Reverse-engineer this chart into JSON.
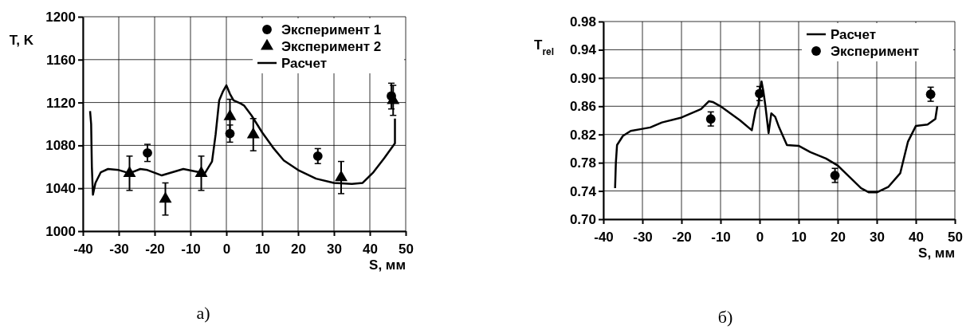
{
  "chart_data": [
    {
      "type": "line",
      "xlabel": "S, мм",
      "ylabel": "T, K",
      "annotations": [
        "а)"
      ],
      "xlim": [
        -40,
        50
      ],
      "xticks": [
        -40,
        -30,
        -20,
        -10,
        0,
        10,
        20,
        30,
        40,
        50
      ],
      "ylim": [
        1000,
        1200
      ],
      "yticks": [
        1000,
        1040,
        1080,
        1120,
        1160,
        1200
      ],
      "grid": true,
      "legend": "top right",
      "series": [
        {
          "name": "Эксперимент 1",
          "type": "scatter",
          "marker": "circle",
          "color": "#000000",
          "x": [
            -22,
            1,
            25.5,
            46
          ],
          "values": [
            1073,
            1091,
            1070,
            1126
          ],
          "errors": [
            8,
            8,
            7,
            12
          ]
        },
        {
          "name": "Эксперимент 2",
          "type": "scatter",
          "marker": "triangle",
          "color": "#000000",
          "x": [
            -27,
            -17,
            -7,
            1,
            7.5,
            32,
            46.5
          ],
          "values": [
            1054,
            1030,
            1054,
            1107,
            1090,
            1050,
            1122
          ],
          "errors": [
            16,
            15,
            16,
            16,
            15,
            15,
            14
          ]
        },
        {
          "name": "Расчет",
          "type": "line",
          "color": "#000000",
          "x": [
            -38,
            -37.7,
            -37.5,
            -37.2,
            -36.5,
            -35,
            -33,
            -30,
            -27,
            -24,
            -22,
            -18,
            -15,
            -12,
            -9,
            -6,
            -4,
            -3,
            -2,
            -1,
            0,
            1,
            2,
            4,
            5,
            7,
            10,
            13,
            16,
            20,
            25,
            30,
            35,
            38,
            41,
            44,
            47,
            47
          ],
          "values": [
            1112,
            1100,
            1060,
            1034,
            1045,
            1055,
            1058,
            1057,
            1054,
            1058,
            1057,
            1052,
            1055,
            1058,
            1056,
            1054,
            1065,
            1090,
            1122,
            1130,
            1136,
            1128,
            1122,
            1119,
            1117,
            1108,
            1092,
            1078,
            1066,
            1057,
            1049,
            1045,
            1044,
            1045,
            1055,
            1068,
            1082,
            1105
          ]
        }
      ]
    },
    {
      "type": "line",
      "xlabel": "S, мм",
      "ylabel": "T$_{rel}$",
      "annotations": [
        "б)"
      ],
      "xlim": [
        -40,
        50
      ],
      "xticks": [
        -40,
        -30,
        -20,
        -10,
        0,
        10,
        20,
        30,
        40,
        50
      ],
      "ylim": [
        0.7,
        0.98
      ],
      "yticks": [
        {
          "value": 0.7,
          "label": "0.70"
        },
        0.74,
        0.78,
        0.82,
        0.86,
        {
          "value": 0.9,
          "label": "0.90"
        },
        0.94,
        0.98
      ],
      "grid": true,
      "legend": "top right",
      "series": [
        {
          "name": "Расчет",
          "type": "line",
          "color": "#000000",
          "x": [
            -37,
            -36.8,
            -36.5,
            -35,
            -33,
            -30,
            -28,
            -25,
            -20,
            -15,
            -13,
            -12,
            -10,
            -5,
            -2,
            -1,
            -0.3,
            0,
            0.5,
            1,
            1.5,
            2.3,
            3,
            4,
            5,
            7,
            10,
            13,
            17,
            20,
            23,
            26,
            28,
            30,
            33,
            36,
            38,
            40,
            43,
            45,
            45.5
          ],
          "values": [
            0.744,
            0.78,
            0.805,
            0.818,
            0.825,
            0.828,
            0.83,
            0.837,
            0.844,
            0.856,
            0.867,
            0.866,
            0.86,
            0.84,
            0.826,
            0.855,
            0.862,
            0.88,
            0.895,
            0.88,
            0.86,
            0.822,
            0.85,
            0.845,
            0.83,
            0.805,
            0.804,
            0.795,
            0.786,
            0.776,
            0.76,
            0.744,
            0.738,
            0.738,
            0.746,
            0.765,
            0.81,
            0.832,
            0.834,
            0.842,
            0.86
          ]
        },
        {
          "name": "Эксперимент",
          "type": "scatter",
          "marker": "circle",
          "color": "#000000",
          "x": [
            -12.5,
            0,
            19.3,
            43.8
          ],
          "values": [
            0.842,
            0.878,
            0.762,
            0.877
          ],
          "errors": [
            0.01,
            0.01,
            0.01,
            0.01
          ]
        }
      ]
    }
  ]
}
